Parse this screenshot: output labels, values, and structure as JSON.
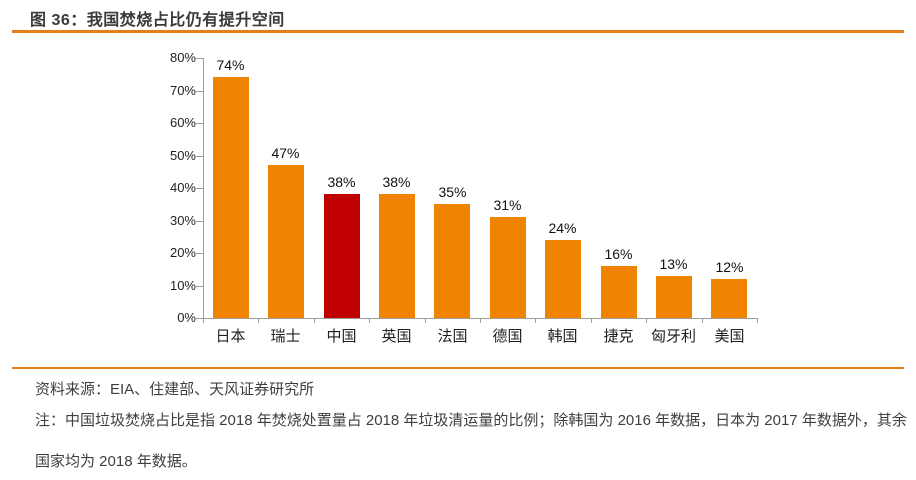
{
  "figure": {
    "title": "图 36：我国焚烧占比仍有提升空间",
    "source": "资料来源：EIA、住建部、天风证券研究所",
    "note": "注：中国垃圾焚烧占比是指 2018 年焚烧处置量占 2018 年垃圾清运量的比例；除韩国为 2016 年数据，日本为 2017 年数据外，其余国家均为 2018 年数据。"
  },
  "colors": {
    "accent_orange": "#F08300",
    "highlight_red": "#C00000",
    "rule_orange": "#E87E1A",
    "axis_grey": "#9E9E9E"
  },
  "chart_data": {
    "type": "bar",
    "title": "图 36：我国焚烧占比仍有提升空间",
    "categories": [
      "日本",
      "瑞士",
      "中国",
      "英国",
      "法国",
      "德国",
      "韩国",
      "捷克",
      "匈牙利",
      "美国"
    ],
    "values": [
      74,
      47,
      38,
      38,
      35,
      31,
      24,
      16,
      13,
      12
    ],
    "data_labels": [
      "74%",
      "47%",
      "38%",
      "38%",
      "35%",
      "31%",
      "24%",
      "16%",
      "13%",
      "12%"
    ],
    "highlight_index": 2,
    "highlight_category": "中国",
    "bar_color": "#F08300",
    "highlight_color": "#C00000",
    "y_ticks": [
      "80%",
      "70%",
      "60%",
      "50%",
      "40%",
      "30%",
      "20%",
      "10%",
      "0%"
    ],
    "ylim": [
      0,
      80
    ],
    "xlabel": "",
    "ylabel": "",
    "grid": false,
    "legend": "none"
  }
}
